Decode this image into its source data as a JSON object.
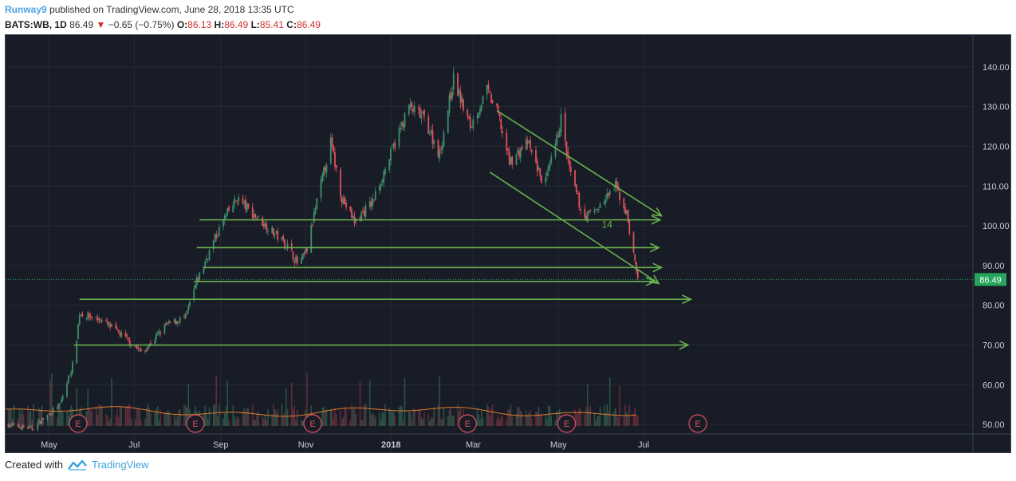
{
  "header": {
    "line1_author": "Runway9",
    "line1_rest": " published on TradingView.com, June 28, 2018 13:35 UTC",
    "symbol": "BATS:WB, 1D",
    "last": "86.49",
    "change": "−0.65 (−0.75%)",
    "o_label": "O:",
    "o_value": "86.13",
    "h_label": "H:",
    "h_value": "86.49",
    "l_label": "L:",
    "l_value": "85.41",
    "c_label": "C:",
    "c_value": "86.49"
  },
  "footer": {
    "created_with": "Created with",
    "brand": "TradingView"
  },
  "colors": {
    "up": "#3f8f6c",
    "down": "#e0505a",
    "trend": "#6ab04c",
    "bg": "#181c27",
    "price_tag": "#26a65b"
  },
  "chart_data": {
    "type": "candlestick",
    "x_ticks": [
      "May",
      "Jul",
      "Sep",
      "Nov",
      "2018",
      "Mar",
      "May",
      "Jul"
    ],
    "y_ticks": [
      "140.00",
      "130.00",
      "120.00",
      "110.00",
      "100.00",
      "90.00",
      "80.00",
      "70.00",
      "60.00",
      "50.00"
    ],
    "ylim": [
      43,
      148
    ],
    "last_price_label": "86.49",
    "annotation_text": "14",
    "earnings_marker_label": "E",
    "price_path": [
      [
        "2017-04-01",
        50
      ],
      [
        "2017-04-20",
        49
      ],
      [
        "2017-05-10",
        55
      ],
      [
        "2017-05-20",
        66
      ],
      [
        "2017-05-24",
        78
      ],
      [
        "2017-06-10",
        76
      ],
      [
        "2017-06-25",
        72
      ],
      [
        "2017-07-08",
        68
      ],
      [
        "2017-07-25",
        75
      ],
      [
        "2017-08-08",
        77
      ],
      [
        "2017-08-16",
        86
      ],
      [
        "2017-08-28",
        96
      ],
      [
        "2017-09-05",
        102
      ],
      [
        "2017-09-14",
        107
      ],
      [
        "2017-09-25",
        103
      ],
      [
        "2017-10-05",
        100
      ],
      [
        "2017-10-20",
        95
      ],
      [
        "2017-10-28",
        90
      ],
      [
        "2017-11-03",
        94
      ],
      [
        "2017-11-10",
        106
      ],
      [
        "2017-11-20",
        121
      ],
      [
        "2017-11-28",
        107
      ],
      [
        "2017-12-07",
        101
      ],
      [
        "2017-12-20",
        106
      ],
      [
        "2018-01-02",
        118
      ],
      [
        "2018-01-15",
        130
      ],
      [
        "2018-01-26",
        127
      ],
      [
        "2018-02-06",
        118
      ],
      [
        "2018-02-16",
        137
      ],
      [
        "2018-02-28",
        125
      ],
      [
        "2018-03-12",
        134
      ],
      [
        "2018-03-20",
        128
      ],
      [
        "2018-03-28",
        116
      ],
      [
        "2018-04-10",
        121
      ],
      [
        "2018-04-22",
        110
      ],
      [
        "2018-04-30",
        120
      ],
      [
        "2018-05-04",
        127
      ],
      [
        "2018-05-10",
        114
      ],
      [
        "2018-05-20",
        102
      ],
      [
        "2018-06-01",
        105
      ],
      [
        "2018-06-12",
        110
      ],
      [
        "2018-06-20",
        103
      ],
      [
        "2018-06-28",
        86.5
      ]
    ],
    "earnings_dates": [
      "2017-05-23",
      "2017-08-15",
      "2017-11-07",
      "2018-02-26",
      "2018-05-08",
      "2018-08-10"
    ],
    "horizontal_lines": [
      {
        "from": "2017-08-18",
        "to": "2018-07-14",
        "y": 101.5
      },
      {
        "from": "2017-08-16",
        "to": "2018-07-13",
        "y": 94.5
      },
      {
        "from": "2017-08-21",
        "to": "2018-07-15",
        "y": 89.5
      },
      {
        "from": "2017-08-14",
        "to": "2018-07-10",
        "y": 86
      },
      {
        "from": "2017-05-24",
        "to": "2018-08-05",
        "y": 81.5
      },
      {
        "from": "2017-05-20",
        "to": "2018-08-03",
        "y": 70
      }
    ],
    "channel_lines": [
      {
        "from": "2018-03-19",
        "y1": 129,
        "to": "2018-07-15",
        "y2": 102.5
      },
      {
        "from": "2018-03-14",
        "y1": 113.5,
        "to": "2018-07-13",
        "y2": 85.5
      }
    ]
  }
}
